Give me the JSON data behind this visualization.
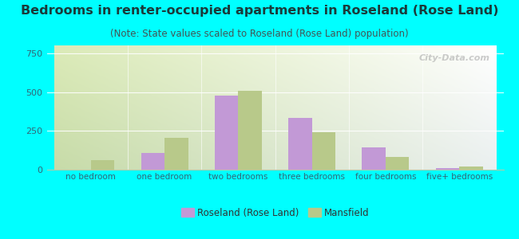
{
  "title": "Bedrooms in renter-occupied apartments in Roseland (Rose Land)",
  "subtitle": "(Note: State values scaled to Roseland (Rose Land) population)",
  "categories": [
    "no bedroom",
    "one bedroom",
    "two bedrooms",
    "three bedrooms",
    "four bedrooms",
    "five+ bedrooms"
  ],
  "roseland_values": [
    0,
    110,
    475,
    335,
    145,
    12
  ],
  "mansfield_values": [
    60,
    205,
    510,
    240,
    80,
    18
  ],
  "roseland_color": "#c299d6",
  "mansfield_color": "#b8c98a",
  "ylim": [
    0,
    800
  ],
  "yticks": [
    0,
    250,
    500,
    750
  ],
  "background_color": "#00ffff",
  "watermark": "City-Data.com",
  "legend_roseland": "Roseland (Rose Land)",
  "legend_mansfield": "Mansfield",
  "title_fontsize": 11.5,
  "subtitle_fontsize": 8.5,
  "bar_width": 0.32
}
